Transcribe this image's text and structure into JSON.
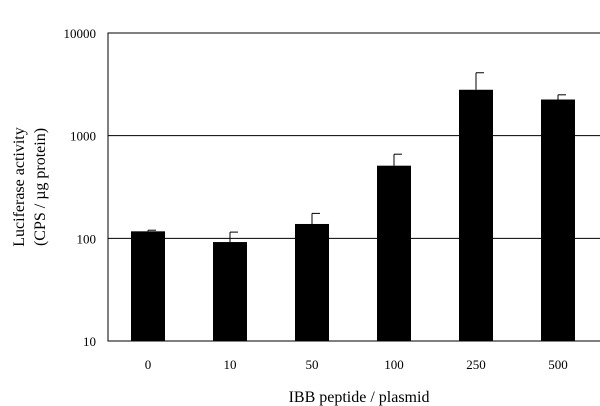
{
  "chart_data": {
    "type": "bar",
    "title": "",
    "xlabel": "IBB peptide / plasmid",
    "ylabel_lines": [
      "Luciferase activity",
      "(CPS / µg protein)"
    ],
    "y_scale": "log",
    "ylim": [
      10,
      10000
    ],
    "y_ticks": [
      "10000",
      "1000",
      "100",
      "10"
    ],
    "y_tick_values": [
      10000,
      1000,
      100,
      10
    ],
    "gridlines": [
      100,
      1000
    ],
    "categories": [
      "0",
      "10",
      "50",
      "100",
      "250",
      "500"
    ],
    "values": [
      117,
      92,
      138,
      510,
      2800,
      2250
    ],
    "error_upper": [
      120,
      115,
      175,
      660,
      4100,
      2500
    ],
    "bar_color": "#000000"
  }
}
